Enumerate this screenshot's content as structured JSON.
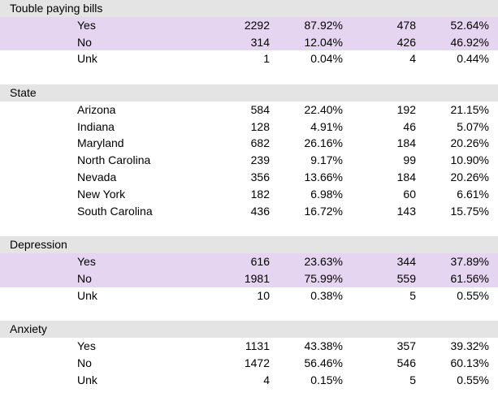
{
  "sections": [
    {
      "title": "Touble paying bills",
      "rows": [
        {
          "label": "Yes",
          "n1": "2292",
          "p1": "87.92%",
          "n2": "478",
          "p2": "52.64%",
          "highlight": true
        },
        {
          "label": "No",
          "n1": "314",
          "p1": "12.04%",
          "n2": "426",
          "p2": "46.92%",
          "highlight": true
        },
        {
          "label": "Unk",
          "n1": "1",
          "p1": "0.04%",
          "n2": "4",
          "p2": "0.44%",
          "highlight": false
        }
      ]
    },
    {
      "title": "State",
      "rows": [
        {
          "label": "Arizona",
          "n1": "584",
          "p1": "22.40%",
          "n2": "192",
          "p2": "21.15%",
          "highlight": false
        },
        {
          "label": "Indiana",
          "n1": "128",
          "p1": "4.91%",
          "n2": "46",
          "p2": "5.07%",
          "highlight": false
        },
        {
          "label": "Maryland",
          "n1": "682",
          "p1": "26.16%",
          "n2": "184",
          "p2": "20.26%",
          "highlight": false
        },
        {
          "label": "North Carolina",
          "n1": "239",
          "p1": "9.17%",
          "n2": "99",
          "p2": "10.90%",
          "highlight": false
        },
        {
          "label": "Nevada",
          "n1": "356",
          "p1": "13.66%",
          "n2": "184",
          "p2": "20.26%",
          "highlight": false
        },
        {
          "label": "New York",
          "n1": "182",
          "p1": "6.98%",
          "n2": "60",
          "p2": "6.61%",
          "highlight": false
        },
        {
          "label": "South Carolina",
          "n1": "436",
          "p1": "16.72%",
          "n2": "143",
          "p2": "15.75%",
          "highlight": false
        }
      ]
    },
    {
      "title": "Depression",
      "rows": [
        {
          "label": "Yes",
          "n1": "616",
          "p1": "23.63%",
          "n2": "344",
          "p2": "37.89%",
          "highlight": true
        },
        {
          "label": "No",
          "n1": "1981",
          "p1": "75.99%",
          "n2": "559",
          "p2": "61.56%",
          "highlight": true
        },
        {
          "label": "Unk",
          "n1": "10",
          "p1": "0.38%",
          "n2": "5",
          "p2": "0.55%",
          "highlight": false
        }
      ]
    },
    {
      "title": "Anxiety",
      "rows": [
        {
          "label": "Yes",
          "n1": "1131",
          "p1": "43.38%",
          "n2": "357",
          "p2": "39.32%",
          "highlight": false
        },
        {
          "label": "No",
          "n1": "1472",
          "p1": "56.46%",
          "n2": "546",
          "p2": "60.13%",
          "highlight": false
        },
        {
          "label": "Unk",
          "n1": "4",
          "p1": "0.15%",
          "n2": "5",
          "p2": "0.55%",
          "highlight": false
        }
      ]
    }
  ],
  "colors": {
    "section_header_bg": "#e4e4e4",
    "highlight_bg": "#e6d5f0"
  }
}
